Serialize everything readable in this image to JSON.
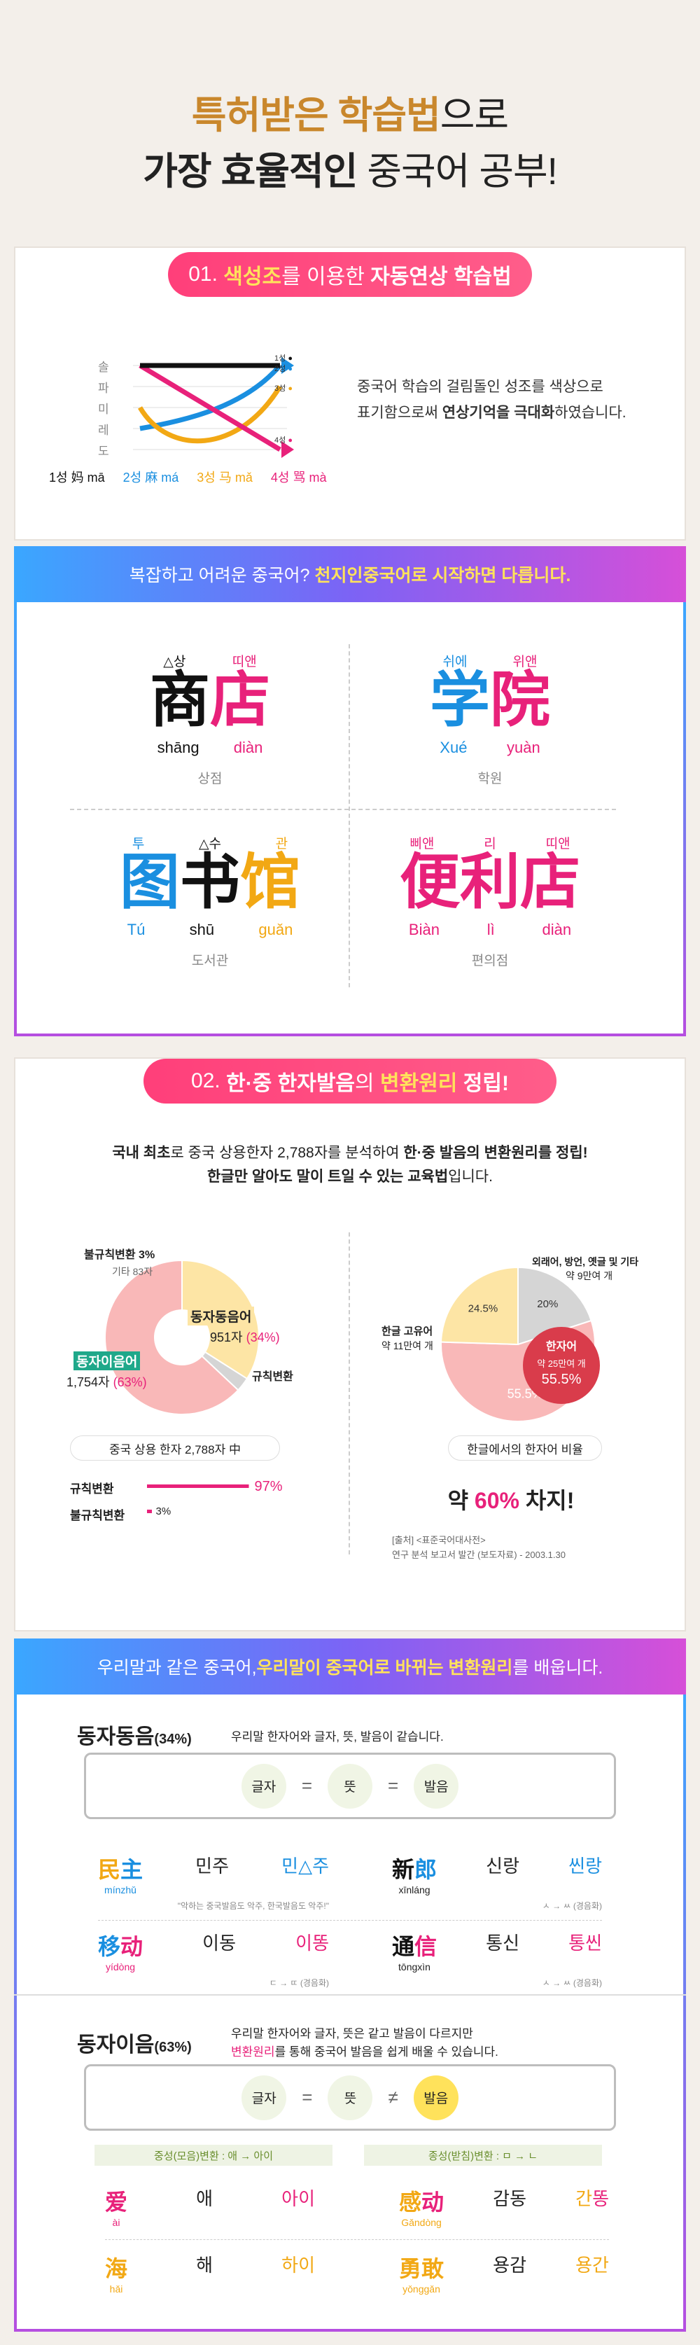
{
  "hero": {
    "line1_gold": "특허받은 학습법",
    "line1_rest": "으로",
    "line2_bold": "가장 효율적인",
    "line2_rest": " 중국어 공부!"
  },
  "section1": {
    "pill_num": "01.",
    "pill_y1": "색성조",
    "pill_n1": "를 이용한",
    "pill_b1": "자동연상 학습법",
    "tone_scale": [
      "솔",
      "파",
      "미",
      "레",
      "도"
    ],
    "tone_marks": [
      "1성",
      "2성",
      "3성",
      "4성"
    ],
    "tone_legend": "1성  妈 mā    2성  麻 má    3성  马 mǎ    4성  骂 mà",
    "tone_legend_items": [
      {
        "num": "1성",
        "han": "妈",
        "pin": "mā",
        "color": "#111111"
      },
      {
        "num": "2성",
        "han": "麻",
        "pin": "má",
        "color": "#1a8fe0"
      },
      {
        "num": "3성",
        "han": "马",
        "pin": "mǎ",
        "color": "#f2a814"
      },
      {
        "num": "4성",
        "han": "骂",
        "pin": "mà",
        "color": "#e8217a"
      }
    ],
    "desc1": "중국어 학습의 걸림돌인 성조를 색상으로",
    "desc2a": "표기함으로써 ",
    "desc2b": "연상기억을 극대화",
    "desc2c": "하였습니다."
  },
  "banner1": {
    "pre": "복잡하고 어려운 중국어? ",
    "bold": "천지인중국어로 시작하면 다릅니다."
  },
  "chars": {
    "shangdian": {
      "ann": [
        "△상",
        "띠앤"
      ],
      "han": [
        "商",
        "店"
      ],
      "pin": [
        "shāng",
        "diàn"
      ],
      "ko": "상점"
    },
    "xueyuan": {
      "ann": [
        "쉬에",
        "위앤"
      ],
      "han": [
        "学",
        "院"
      ],
      "pin": [
        "Xué",
        "yuàn"
      ],
      "ko": "학원"
    },
    "tushuguan": {
      "ann": [
        "투",
        "△수",
        "관"
      ],
      "han": [
        "图",
        "书",
        "馆"
      ],
      "pin": [
        "Tú",
        "shū",
        "guǎn"
      ],
      "ko": "도서관"
    },
    "bianlidian": {
      "ann": [
        "삐앤",
        "리",
        "띠앤"
      ],
      "han": [
        "便",
        "利",
        "店"
      ],
      "pin": [
        "Biàn",
        "lì",
        "diàn"
      ],
      "ko": "편의점"
    }
  },
  "section2": {
    "pill_num": "02.",
    "pill_b1": "한·중 한자발음",
    "pill_n1": "의",
    "pill_y1": "변환원리",
    "pill_b2": "정립!",
    "t1a": "국내 최초",
    "t1b": "로 중국 상용한자 2,788자를 분석하여 ",
    "t1c": "한·중 발음의 변환원리를 정립!",
    "t2a": "한글만 알아도 말이 트일 수 있는 교육법",
    "t2b": "입니다.",
    "pie1": {
      "irregular": "불규칙변환 3%",
      "other": "기타 83자",
      "same": "동자동음어",
      "same_count": "951자",
      "same_pct": "(34%)",
      "diff": "동자이음어",
      "diff_count": "1,754자",
      "diff_pct": "(63%)",
      "rule": "규칙변환",
      "caption": "중국 상용 한자 2,788자 中"
    },
    "bar_rule_label": "규칙변환",
    "bar_rule_value": "97%",
    "bar_irr_label": "불규칙변환",
    "bar_irr_value": "3%",
    "pie2": {
      "foreign": "외래어, 방언, 옛글 및 기타",
      "foreign_sub": "약 9만여 개",
      "foreign_pct": "20%",
      "native": "한글 고유어",
      "native_sub": "약 11만여 개",
      "native_pct": "24.5%",
      "hanja": "한자어",
      "hanja_sub": "약 25만여 개",
      "hanja_pct": "55.5%",
      "caption": "한글에서의 한자어 비율"
    },
    "big_stat_pre": "약 ",
    "big_stat_pct": "60%",
    "big_stat_post": " 차지!",
    "src1": "[출처] <표준국어대사전>",
    "src2": "연구 분석 보고서 발간 (보도자료) - 2003.1.30"
  },
  "chart_data": [
    {
      "type": "pie",
      "title": "",
      "labels": [
        "동자동음어",
        "동자이음어",
        "불규칙변환"
      ],
      "values": [
        34,
        63,
        3
      ]
    },
    {
      "type": "pie",
      "title": "한글에서의 한자어 비율",
      "labels": [
        "한자어",
        "한글 고유어",
        "외래어, 방언, 옛글 및 기타"
      ],
      "values": [
        55.5,
        24.5,
        20
      ]
    },
    {
      "type": "bar",
      "categories": [
        "규칙변환",
        "불규칙변환"
      ],
      "values": [
        97,
        3
      ]
    }
  ],
  "banner2": {
    "pre": "우리말과 같은 중국어, ",
    "bold": "우리말이 중국어로 바뀌는 변환원리",
    "post": "를 배웁니다."
  },
  "same": {
    "title": "동자동음",
    "pct": "(34%)",
    "desc": "우리말 한자어와 글자, 뜻, 발음이 같습니다.",
    "f": [
      "글자",
      "=",
      "뜻",
      "=",
      "발음"
    ],
    "words": [
      {
        "han": "民主",
        "pin": "mínzhǔ",
        "ko": "민주",
        "ko2": "민△주",
        "note": "\"악하는 중국발음도 악주, 한국발음도 악주!\""
      },
      {
        "han": "新郎",
        "pin": "xīnláng",
        "ko": "신랑",
        "ko2": "씬랑",
        "note": "ㅅ → ㅆ (경음화)"
      },
      {
        "han": "移动",
        "pin": "yídòng",
        "ko": "이동",
        "ko2": "이똥",
        "note": "ㄷ → ㄸ (경음화)"
      },
      {
        "han": "通信",
        "pin": "tōngxìn",
        "ko": "통신",
        "ko2": "통씬",
        "note": "ㅅ → ㅆ (경음화)"
      }
    ]
  },
  "diff": {
    "title": "동자이음",
    "pct": "(63%)",
    "desc1": "우리말 한자어와 글자, 뜻은 같고 발음이 다르지만",
    "desc2a": "변환원리",
    "desc2b": "를 통해 중국어 발음을 쉽게 배울 수 있습니다.",
    "f": [
      "글자",
      "=",
      "뜻",
      "≠",
      "발음"
    ],
    "bar_left": "중성(모음)변환 : 애 → 아이",
    "bar_right": "종성(받침)변환 : ㅁ → ㄴ",
    "words": [
      {
        "han": "爱",
        "pin": "ài",
        "ko": "애",
        "ko2": "아이"
      },
      {
        "han": "感动",
        "pin": "Gǎndòng",
        "ko": "감동",
        "ko2": "간똥"
      },
      {
        "han": "海",
        "pin": "hǎi",
        "ko": "해",
        "ko2": "하이"
      },
      {
        "han": "勇敢",
        "pin": "yǒnggǎn",
        "ko": "용감",
        "ko2": "용간"
      }
    ]
  }
}
